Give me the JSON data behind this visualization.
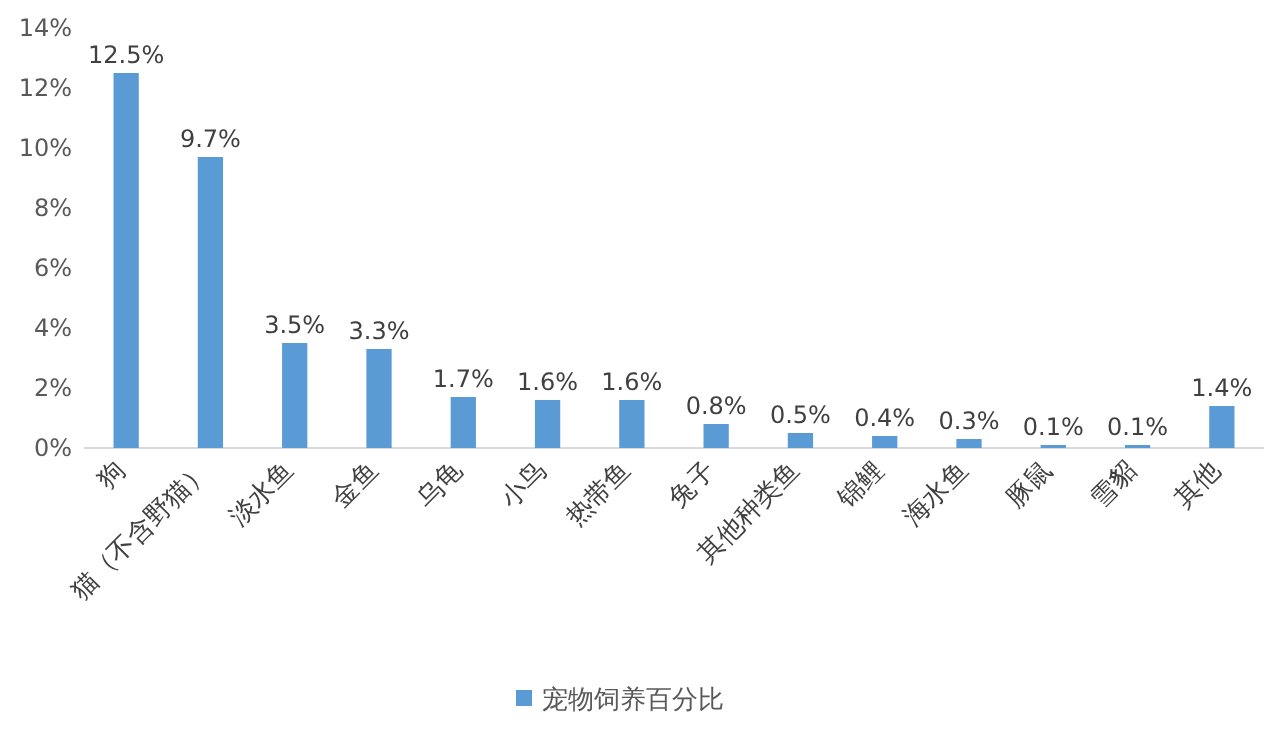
{
  "chart_data": {
    "type": "bar",
    "categories": [
      "狗",
      "猫（不含野猫）",
      "淡水鱼",
      "金鱼",
      "乌龟",
      "小鸟",
      "热带鱼",
      "兔子",
      "其他种类鱼",
      "锦鲤",
      "海水鱼",
      "豚鼠",
      "雪貂",
      "其他"
    ],
    "series": [
      {
        "name": "宠物饲养百分比",
        "color": "#5b9bd5",
        "values": [
          12.5,
          9.7,
          3.5,
          3.3,
          1.7,
          1.6,
          1.6,
          0.8,
          0.5,
          0.4,
          0.3,
          0.1,
          0.1,
          1.4
        ],
        "value_labels": [
          "12.5%",
          "9.7%",
          "3.5%",
          "3.3%",
          "1.7%",
          "1.6%",
          "1.6%",
          "0.8%",
          "0.5%",
          "0.4%",
          "0.3%",
          "0.1%",
          "0.1%",
          "1.4%"
        ]
      }
    ],
    "ylim": [
      0,
      14
    ],
    "yticks": [
      {
        "value": 0,
        "label": "0%"
      },
      {
        "value": 2,
        "label": "2%"
      },
      {
        "value": 4,
        "label": "4%"
      },
      {
        "value": 6,
        "label": "6%"
      },
      {
        "value": 8,
        "label": "8%"
      },
      {
        "value": 10,
        "label": "10%"
      },
      {
        "value": 12,
        "label": "12%"
      },
      {
        "value": 14,
        "label": "14%"
      }
    ],
    "grid": false,
    "legend": "bottom"
  }
}
